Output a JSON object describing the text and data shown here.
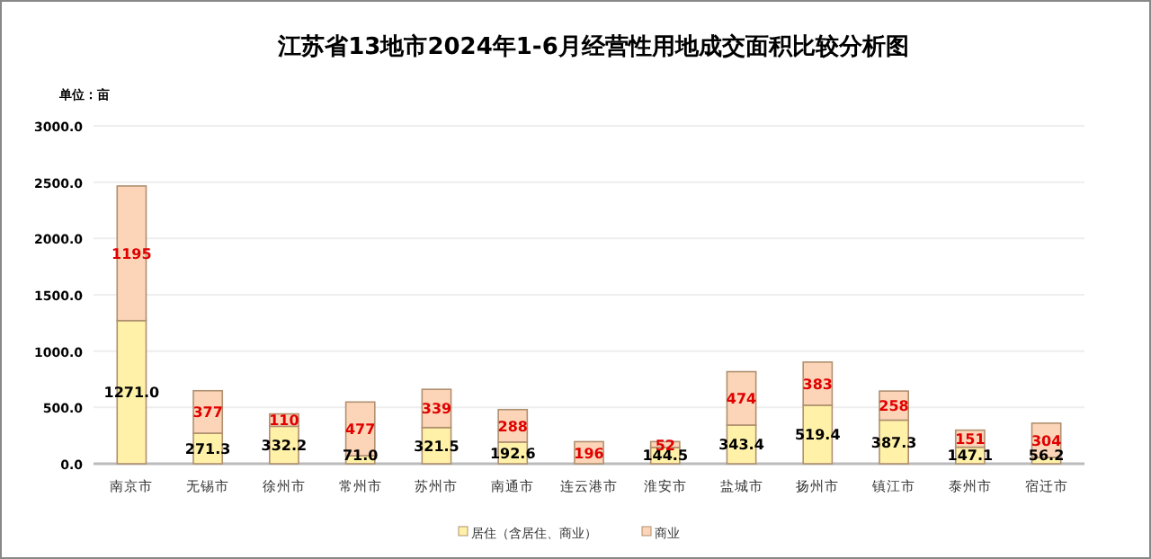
{
  "chart_data": {
    "type": "bar",
    "title": "江苏省13地市2024年1-6月经营性用地成交面积比较分析图",
    "annotations": [
      "单位：亩"
    ],
    "stacked": true,
    "categories": [
      "南京市",
      "无锡市",
      "徐州市",
      "常州市",
      "苏州市",
      "南通市",
      "连云港市",
      "淮安市",
      "盐城市",
      "扬州市",
      "镇江市",
      "泰州市",
      "宿迁市"
    ],
    "series": [
      {
        "name": "居住（含居住、商业）",
        "color": "#fff2a8",
        "values": [
          1271.0,
          271.3,
          332.2,
          71.0,
          321.5,
          192.6,
          null,
          144.5,
          343.4,
          519.4,
          387.3,
          147.1,
          56.2
        ],
        "value_labels": [
          "1271.0",
          "271.3",
          "332.2",
          "71.0",
          "321.5",
          "192.6",
          null,
          "144.5",
          "343.4",
          "519.4",
          "387.3",
          "147.1",
          "56.2"
        ]
      },
      {
        "name": "商业",
        "color": "#fcd5b8",
        "values": [
          1195,
          377,
          110,
          477,
          339,
          288,
          196,
          52,
          474,
          383,
          258,
          151,
          304
        ],
        "value_labels": [
          "1195",
          "377",
          "110",
          "477",
          "339",
          "288",
          "196",
          "52",
          "474",
          "383",
          "258",
          "151",
          "304"
        ]
      }
    ],
    "ylim": [
      0,
      3000
    ],
    "yticks": [
      {
        "value": 0,
        "label": "0.0"
      },
      {
        "value": 500,
        "label": "500.0"
      },
      {
        "value": 1000,
        "label": "1000.0"
      },
      {
        "value": 1500,
        "label": "1500.0"
      },
      {
        "value": 2000,
        "label": "2000.0"
      },
      {
        "value": 2500,
        "label": "2500.0"
      },
      {
        "value": 3000,
        "label": "3000.0"
      }
    ],
    "grid": "y",
    "legend": "bottom"
  }
}
